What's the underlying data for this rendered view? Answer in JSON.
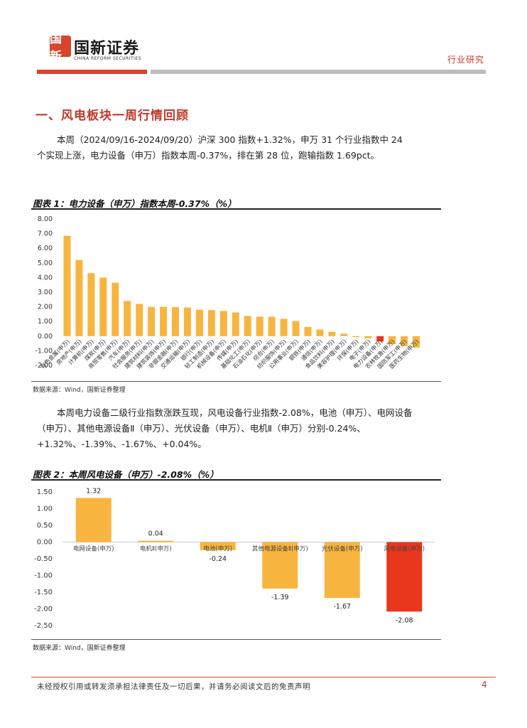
{
  "header": {
    "logo_mark": "国新",
    "logo_cn": "国新证券",
    "logo_en": "CHINA REFORM SECURITIES",
    "report_type": "行业研究"
  },
  "section": {
    "title": "一、风电板块一周行情回顾"
  },
  "paragraphs": {
    "p1": "本周（2024/09/16-2024/09/20）沪深 300 指数+1.32%，申万 31 个行业指数中 24 个实现上涨，电力设备（申万）指数本周-0.37%，排在第 28 位，跑输指数 1.69pct。",
    "p2": "本周电力设备二级行业指数涨跌互现，风电设备行业指数-2.08%，电池（申万）、电网设备（申万）、其他电源设备Ⅱ（申万）、光伏设备（申万）、电机Ⅱ（申万）分别-0.24%、+1.32%、-1.39%、-1.67%、+0.04%。"
  },
  "figure1": {
    "title": "图表 1：电力设备（申万）指数本周-0.37%（%）",
    "source": "数据来源：Wind，国新证券整理"
  },
  "figure2": {
    "title": "图表 2：本周风电设备（申万）-2.08%（%）",
    "source": "数据来源：Wind，国新证券整理"
  },
  "chart_data": [
    {
      "type": "bar",
      "title": "",
      "xlabel": "",
      "ylabel": "",
      "ylim": [
        -2.0,
        8.0
      ],
      "yticks": [
        "8.00",
        "7.00",
        "6.00",
        "5.00",
        "4.00",
        "3.00",
        "2.00",
        "1.00",
        "0.00",
        "-1.00",
        "-2.00"
      ],
      "categories": [
        "有色金属(申万)",
        "房地产(申万)",
        "计算机(申万)",
        "煤炭(申万)",
        "商贸零售(申万)",
        "汽车(申万)",
        "社会服务(申万)",
        "建筑材料(申万)",
        "建筑装饰(申万)",
        "非银金融(申万)",
        "交通运输(申万)",
        "银行(申万)",
        "轻工制造(申万)",
        "机械设备(申万)",
        "传媒(申万)",
        "基础化工(申万)",
        "石油石化(申万)",
        "综合(申万)",
        "纺织服饰(申万)",
        "公用事业(申万)",
        "钢铁(申万)",
        "通信(申万)",
        "食品饮料(申万)",
        "美容护理(申万)",
        "环保(申万)",
        "电子(申万)",
        "电力设备(申万)",
        "农林牧渔(申万)",
        "国防军工(申万)",
        "医药生物(申万)"
      ],
      "values": [
        6.85,
        5.2,
        4.3,
        4.0,
        3.65,
        2.4,
        2.2,
        2.0,
        2.0,
        1.98,
        1.95,
        1.8,
        1.78,
        1.72,
        1.62,
        1.38,
        1.33,
        1.32,
        1.18,
        1.03,
        0.63,
        0.45,
        0.3,
        0.17,
        -0.07,
        -0.15,
        -0.37,
        -0.55,
        -0.68,
        -0.78
      ],
      "highlight_category": "电力设备(申万)",
      "colors": {
        "bar": "#f7b540",
        "highlight": "#e8371c"
      }
    },
    {
      "type": "bar",
      "title": "",
      "xlabel": "",
      "ylabel": "",
      "ylim": [
        -2.5,
        1.5
      ],
      "yticks": [
        "1.50",
        "1.00",
        "0.50",
        "0.00",
        "-0.50",
        "-1.00",
        "-1.50",
        "-2.00",
        "-2.50"
      ],
      "categories": [
        "电网设备(申万)",
        "电机Ⅱ(申万)",
        "电池(申万)",
        "其他电源设备Ⅱ(申万)",
        "光伏设备(申万)",
        "风电设备(申万)"
      ],
      "values": [
        1.32,
        0.04,
        -0.24,
        -1.39,
        -1.67,
        -2.08
      ],
      "data_labels": [
        "1.32",
        "0.04",
        "-0.24",
        "-1.39",
        "-1.67",
        "-2.08"
      ],
      "highlight_category": "风电设备(申万)",
      "colors": {
        "bar": "#f7b540",
        "highlight": "#e8371c"
      }
    }
  ],
  "footer": {
    "disclaimer": "未经授权引用或转发须承担法律责任及一切后果，并请务必阅读文后的免责声明",
    "page": "4"
  }
}
